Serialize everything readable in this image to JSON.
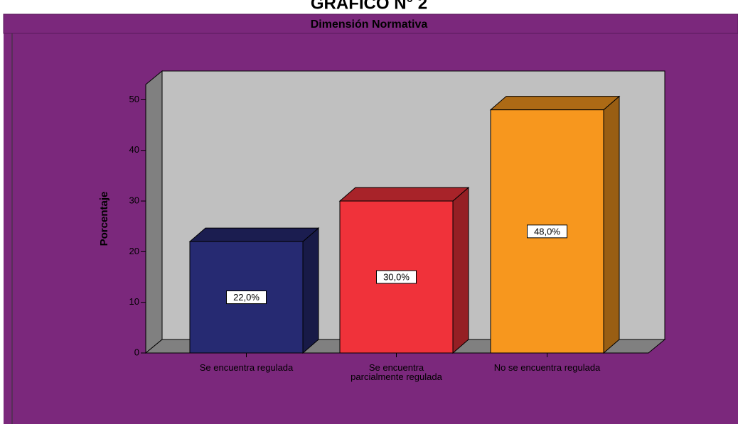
{
  "heading": "GRAFICO N° 2",
  "chart_data": {
    "type": "bar3d",
    "title": "Dimensión Normativa",
    "y_label": "Porcentaje",
    "categories": [
      "Se encuentra regulada",
      "Se encuentra\nparcialmente regulada",
      "No se encuentra regulada"
    ],
    "values": [
      22,
      30,
      48
    ],
    "value_labels": [
      "22,0%",
      "30,0%",
      "48,0%"
    ],
    "colors": [
      "#262a72",
      "#f0323a",
      "#f7971e"
    ],
    "ylim": [
      0,
      53
    ],
    "yticks": [
      0,
      10,
      20,
      30,
      40,
      50
    ]
  }
}
